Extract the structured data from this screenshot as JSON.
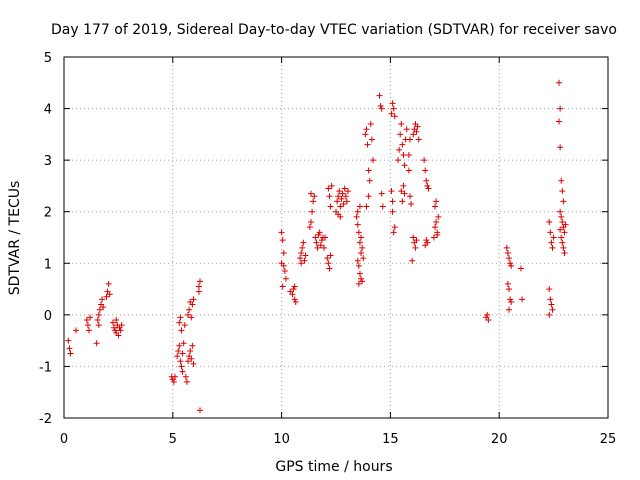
{
  "chart_data": {
    "type": "scatter",
    "title": "Day 177 of 2019, Sidereal Day-to-day VTEC variation (SDTVAR) for receiver savo",
    "xlabel": "GPS time / hours",
    "ylabel": "SDTVAR / TECUs",
    "xlim": [
      0,
      25
    ],
    "ylim": [
      -2,
      5
    ],
    "xticks": [
      0,
      5,
      10,
      15,
      20,
      25
    ],
    "yticks": [
      -2,
      -1,
      0,
      1,
      2,
      3,
      4,
      5
    ],
    "grid": true,
    "marker": "plus",
    "marker_color": "#e00000",
    "series": [
      {
        "name": "savo",
        "points": [
          [
            0.2,
            -0.5
          ],
          [
            0.25,
            -0.65
          ],
          [
            0.3,
            -0.75
          ],
          [
            0.55,
            -0.3
          ],
          [
            1.05,
            -0.1
          ],
          [
            1.1,
            -0.2
          ],
          [
            1.15,
            -0.3
          ],
          [
            1.2,
            -0.05
          ],
          [
            1.5,
            -0.55
          ],
          [
            1.55,
            -0.1
          ],
          [
            1.6,
            0.0
          ],
          [
            1.65,
            0.1
          ],
          [
            1.7,
            0.2
          ],
          [
            1.75,
            0.3
          ],
          [
            1.8,
            0.15
          ],
          [
            1.6,
            -0.2
          ],
          [
            1.95,
            0.35
          ],
          [
            2.0,
            0.45
          ],
          [
            2.05,
            0.6
          ],
          [
            2.1,
            0.4
          ],
          [
            2.25,
            -0.15
          ],
          [
            2.3,
            -0.25
          ],
          [
            2.35,
            -0.3
          ],
          [
            2.4,
            -0.35
          ],
          [
            2.45,
            -0.2
          ],
          [
            2.5,
            -0.4
          ],
          [
            2.55,
            -0.25
          ],
          [
            2.6,
            -0.3
          ],
          [
            2.65,
            -0.2
          ],
          [
            2.4,
            -0.1
          ],
          [
            4.95,
            -1.2
          ],
          [
            5.0,
            -1.25
          ],
          [
            5.05,
            -1.3
          ],
          [
            5.1,
            -1.2
          ],
          [
            5.2,
            -0.8
          ],
          [
            5.25,
            -0.7
          ],
          [
            5.3,
            -0.6
          ],
          [
            5.35,
            -0.9
          ],
          [
            5.4,
            -1.0
          ],
          [
            5.45,
            -0.75
          ],
          [
            5.3,
            -0.15
          ],
          [
            5.35,
            -0.05
          ],
          [
            5.4,
            -0.3
          ],
          [
            5.45,
            -1.1
          ],
          [
            5.5,
            -0.55
          ],
          [
            5.55,
            -0.2
          ],
          [
            5.6,
            -1.2
          ],
          [
            5.65,
            -1.3
          ],
          [
            5.7,
            -0.9
          ],
          [
            5.75,
            -0.8
          ],
          [
            5.8,
            -0.7
          ],
          [
            5.85,
            -0.85
          ],
          [
            5.9,
            -0.6
          ],
          [
            5.95,
            -0.95
          ],
          [
            5.7,
            0.0
          ],
          [
            5.75,
            0.1
          ],
          [
            5.8,
            0.25
          ],
          [
            5.85,
            -0.05
          ],
          [
            5.9,
            0.2
          ],
          [
            5.95,
            0.3
          ],
          [
            6.2,
            0.55
          ],
          [
            6.25,
            0.65
          ],
          [
            6.2,
            0.45
          ],
          [
            6.25,
            -1.85
          ],
          [
            10.0,
            1.6
          ],
          [
            10.05,
            1.45
          ],
          [
            10.1,
            1.2
          ],
          [
            10.0,
            1.0
          ],
          [
            10.1,
            0.95
          ],
          [
            10.15,
            0.85
          ],
          [
            10.2,
            0.7
          ],
          [
            10.05,
            0.55
          ],
          [
            10.4,
            0.45
          ],
          [
            10.5,
            0.4
          ],
          [
            10.55,
            0.5
          ],
          [
            10.6,
            0.3
          ],
          [
            10.65,
            0.25
          ],
          [
            10.6,
            0.55
          ],
          [
            10.85,
            1.1
          ],
          [
            10.9,
            1.2
          ],
          [
            10.95,
            1.3
          ],
          [
            11.0,
            1.4
          ],
          [
            11.05,
            1.05
          ],
          [
            11.1,
            1.15
          ],
          [
            10.9,
            1.0
          ],
          [
            11.3,
            1.7
          ],
          [
            11.35,
            1.8
          ],
          [
            11.4,
            2.0
          ],
          [
            11.45,
            2.2
          ],
          [
            11.5,
            2.3
          ],
          [
            11.35,
            2.35
          ],
          [
            11.55,
            1.5
          ],
          [
            11.6,
            1.4
          ],
          [
            11.65,
            1.3
          ],
          [
            11.7,
            1.55
          ],
          [
            11.75,
            1.6
          ],
          [
            11.8,
            1.35
          ],
          [
            11.85,
            1.45
          ],
          [
            11.9,
            1.5
          ],
          [
            11.95,
            1.3
          ],
          [
            12.0,
            1.5
          ],
          [
            12.1,
            1.1
          ],
          [
            12.15,
            1.0
          ],
          [
            12.2,
            0.9
          ],
          [
            12.25,
            1.15
          ],
          [
            12.15,
            2.45
          ],
          [
            12.2,
            2.3
          ],
          [
            12.25,
            2.1
          ],
          [
            12.3,
            2.5
          ],
          [
            12.5,
            2.0
          ],
          [
            12.55,
            2.2
          ],
          [
            12.6,
            2.3
          ],
          [
            12.65,
            2.4
          ],
          [
            12.7,
            2.1
          ],
          [
            12.75,
            2.25
          ],
          [
            12.8,
            2.35
          ],
          [
            12.85,
            2.15
          ],
          [
            12.9,
            2.45
          ],
          [
            12.95,
            2.3
          ],
          [
            13.0,
            2.2
          ],
          [
            13.05,
            2.4
          ],
          [
            12.6,
            1.95
          ],
          [
            12.7,
            1.9
          ],
          [
            13.45,
            1.9
          ],
          [
            13.5,
            1.75
          ],
          [
            13.55,
            1.6
          ],
          [
            13.6,
            1.4
          ],
          [
            13.65,
            1.2
          ],
          [
            13.5,
            1.05
          ],
          [
            13.55,
            0.95
          ],
          [
            13.6,
            0.8
          ],
          [
            13.65,
            0.7
          ],
          [
            13.7,
            0.65
          ],
          [
            13.5,
            2.0
          ],
          [
            13.6,
            2.1
          ],
          [
            13.65,
            1.5
          ],
          [
            13.7,
            1.3
          ],
          [
            13.75,
            1.1
          ],
          [
            13.55,
            0.6
          ],
          [
            13.85,
            3.5
          ],
          [
            13.9,
            3.6
          ],
          [
            13.95,
            3.3
          ],
          [
            14.0,
            2.8
          ],
          [
            14.05,
            2.6
          ],
          [
            14.1,
            3.7
          ],
          [
            14.15,
            3.4
          ],
          [
            14.2,
            3.0
          ],
          [
            13.9,
            2.1
          ],
          [
            14.0,
            2.3
          ],
          [
            14.5,
            4.25
          ],
          [
            14.55,
            4.05
          ],
          [
            14.6,
            4.0
          ],
          [
            14.65,
            2.1
          ],
          [
            14.6,
            2.35
          ],
          [
            15.05,
            3.9
          ],
          [
            15.1,
            4.1
          ],
          [
            15.15,
            4.0
          ],
          [
            15.2,
            3.85
          ],
          [
            15.05,
            2.4
          ],
          [
            15.1,
            2.2
          ],
          [
            15.15,
            1.6
          ],
          [
            15.2,
            1.7
          ],
          [
            15.1,
            2.0
          ],
          [
            15.35,
            3.0
          ],
          [
            15.4,
            3.2
          ],
          [
            15.45,
            3.5
          ],
          [
            15.5,
            3.7
          ],
          [
            15.55,
            3.3
          ],
          [
            15.6,
            3.1
          ],
          [
            15.65,
            2.9
          ],
          [
            15.7,
            3.4
          ],
          [
            15.75,
            3.6
          ],
          [
            15.5,
            2.4
          ],
          [
            15.55,
            2.2
          ],
          [
            15.6,
            2.5
          ],
          [
            15.65,
            2.35
          ],
          [
            15.85,
            3.1
          ],
          [
            15.9,
            3.4
          ],
          [
            15.85,
            2.8
          ],
          [
            15.9,
            2.3
          ],
          [
            15.95,
            2.15
          ],
          [
            16.0,
            1.05
          ],
          [
            16.05,
            1.5
          ],
          [
            16.1,
            1.4
          ],
          [
            16.15,
            1.3
          ],
          [
            16.2,
            1.45
          ],
          [
            16.05,
            3.5
          ],
          [
            16.1,
            3.6
          ],
          [
            16.15,
            3.7
          ],
          [
            16.2,
            3.55
          ],
          [
            16.25,
            3.65
          ],
          [
            16.3,
            3.4
          ],
          [
            16.6,
            1.35
          ],
          [
            16.65,
            1.45
          ],
          [
            16.7,
            1.4
          ],
          [
            16.55,
            3.0
          ],
          [
            16.6,
            2.8
          ],
          [
            16.65,
            2.6
          ],
          [
            16.7,
            2.5
          ],
          [
            16.75,
            2.45
          ],
          [
            17.0,
            1.5
          ],
          [
            17.05,
            1.7
          ],
          [
            17.1,
            1.8
          ],
          [
            17.15,
            1.6
          ],
          [
            17.2,
            1.9
          ],
          [
            17.05,
            2.1
          ],
          [
            17.1,
            2.2
          ],
          [
            17.15,
            1.55
          ],
          [
            19.4,
            -0.05
          ],
          [
            19.45,
            0.0
          ],
          [
            19.5,
            -0.1
          ],
          [
            20.35,
            1.3
          ],
          [
            20.4,
            1.2
          ],
          [
            20.45,
            1.1
          ],
          [
            20.5,
            1.0
          ],
          [
            20.55,
            0.95
          ],
          [
            20.4,
            0.6
          ],
          [
            20.45,
            0.5
          ],
          [
            20.5,
            0.3
          ],
          [
            20.55,
            0.25
          ],
          [
            20.45,
            0.1
          ],
          [
            21.0,
            0.9
          ],
          [
            21.05,
            0.3
          ],
          [
            22.3,
            1.8
          ],
          [
            22.35,
            1.6
          ],
          [
            22.4,
            1.4
          ],
          [
            22.45,
            1.3
          ],
          [
            22.3,
            0.5
          ],
          [
            22.35,
            0.3
          ],
          [
            22.4,
            0.2
          ],
          [
            22.45,
            0.1
          ],
          [
            22.3,
            0.0
          ],
          [
            22.5,
            1.5
          ],
          [
            22.75,
            4.5
          ],
          [
            22.8,
            4.0
          ],
          [
            22.75,
            3.75
          ],
          [
            22.8,
            3.25
          ],
          [
            22.85,
            2.6
          ],
          [
            22.9,
            2.4
          ],
          [
            22.95,
            2.2
          ],
          [
            22.8,
            2.0
          ],
          [
            22.85,
            1.9
          ],
          [
            22.9,
            1.8
          ],
          [
            22.95,
            1.7
          ],
          [
            23.0,
            1.6
          ],
          [
            22.85,
            1.5
          ],
          [
            22.9,
            1.4
          ],
          [
            22.95,
            1.3
          ],
          [
            23.0,
            1.2
          ],
          [
            22.8,
            1.65
          ],
          [
            23.05,
            1.75
          ]
        ]
      }
    ]
  }
}
